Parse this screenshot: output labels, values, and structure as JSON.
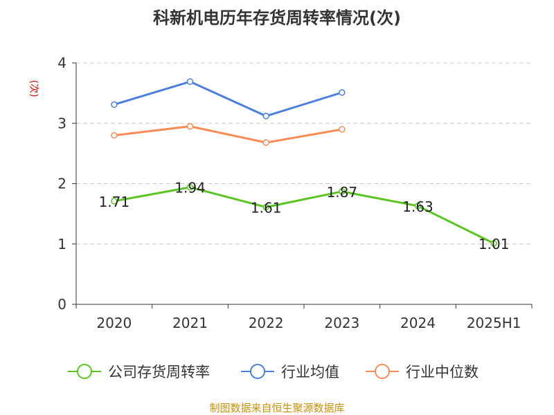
{
  "chart_data": {
    "type": "line",
    "title": "科新机电历年存货周转率情况(次)",
    "ylabel": "(次)",
    "xlabel": "",
    "categories": [
      "2020",
      "2021",
      "2022",
      "2023",
      "2024",
      "2025H1"
    ],
    "ylim": [
      0,
      4
    ],
    "yticks": [
      0,
      1,
      2,
      3,
      4
    ],
    "grid": true,
    "legend_position": "bottom",
    "series": [
      {
        "name": "公司存货周转率",
        "color": "#5ac421",
        "values": [
          1.71,
          1.94,
          1.61,
          1.87,
          1.63,
          1.01
        ],
        "labels": [
          "1.71",
          "1.94",
          "1.61",
          "1.87",
          "1.63",
          "1.01"
        ]
      },
      {
        "name": "行业均值",
        "color": "#4a7fe0",
        "values": [
          3.31,
          3.69,
          3.12,
          3.51,
          null,
          null
        ]
      },
      {
        "name": "行业中位数",
        "color": "#fa8b55",
        "values": [
          2.8,
          2.95,
          2.68,
          2.9,
          null,
          null
        ]
      }
    ]
  },
  "source": "制图数据来自恒生聚源数据库"
}
